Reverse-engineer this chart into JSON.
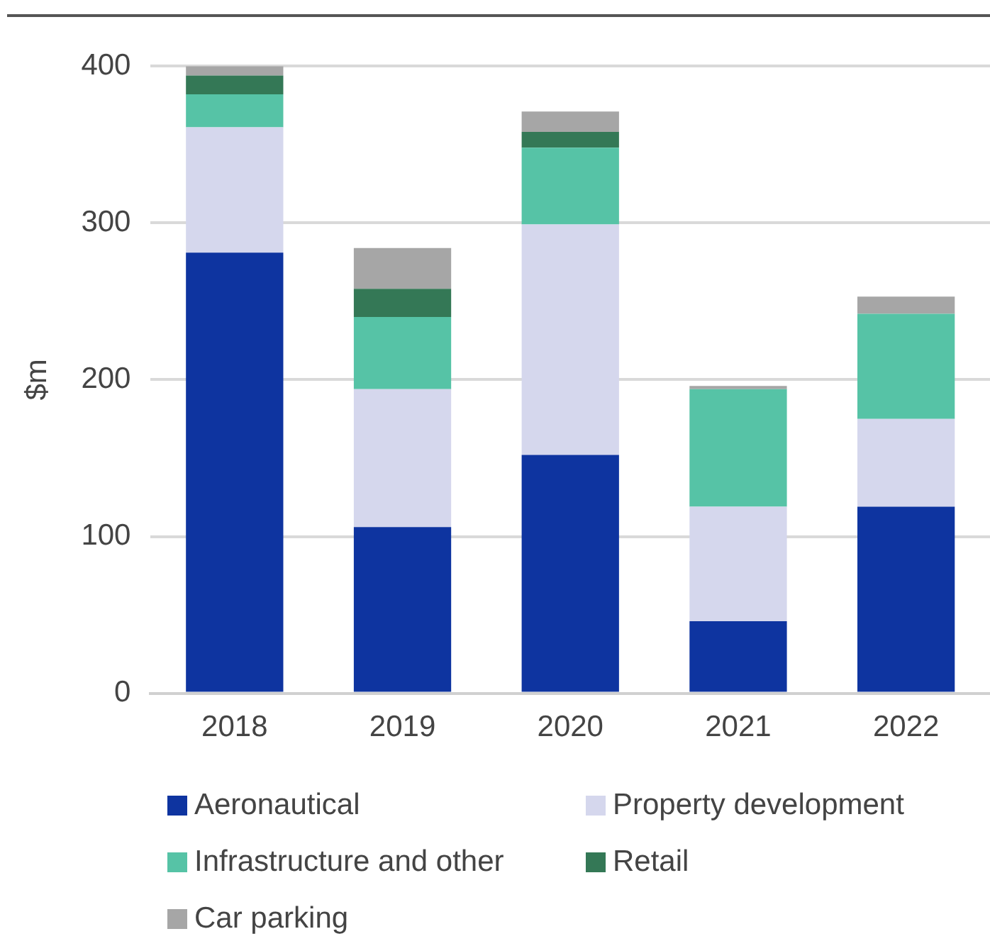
{
  "chart_data": {
    "type": "bar",
    "stacked": true,
    "ylabel": "$m",
    "categories": [
      "2018",
      "2019",
      "2020",
      "2021",
      "2022"
    ],
    "series": [
      {
        "name": "Aeronautical",
        "color": "#0e34a0",
        "values": [
          281,
          106,
          152,
          46,
          119
        ]
      },
      {
        "name": "Property development",
        "color": "#d5d7ed",
        "values": [
          80,
          88,
          147,
          73,
          56
        ]
      },
      {
        "name": "Infrastructure and other",
        "color": "#56c3a6",
        "values": [
          21,
          46,
          49,
          75,
          67
        ]
      },
      {
        "name": "Retail",
        "color": "#347856",
        "values": [
          12,
          18,
          10,
          0,
          0
        ]
      },
      {
        "name": "Car parking",
        "color": "#a6a6a6",
        "values": [
          6,
          26,
          13,
          2,
          11
        ]
      }
    ],
    "ylim": [
      0,
      400
    ],
    "yticks": [
      0,
      100,
      200,
      300,
      400
    ],
    "grid": "y",
    "legend": "bottom"
  }
}
